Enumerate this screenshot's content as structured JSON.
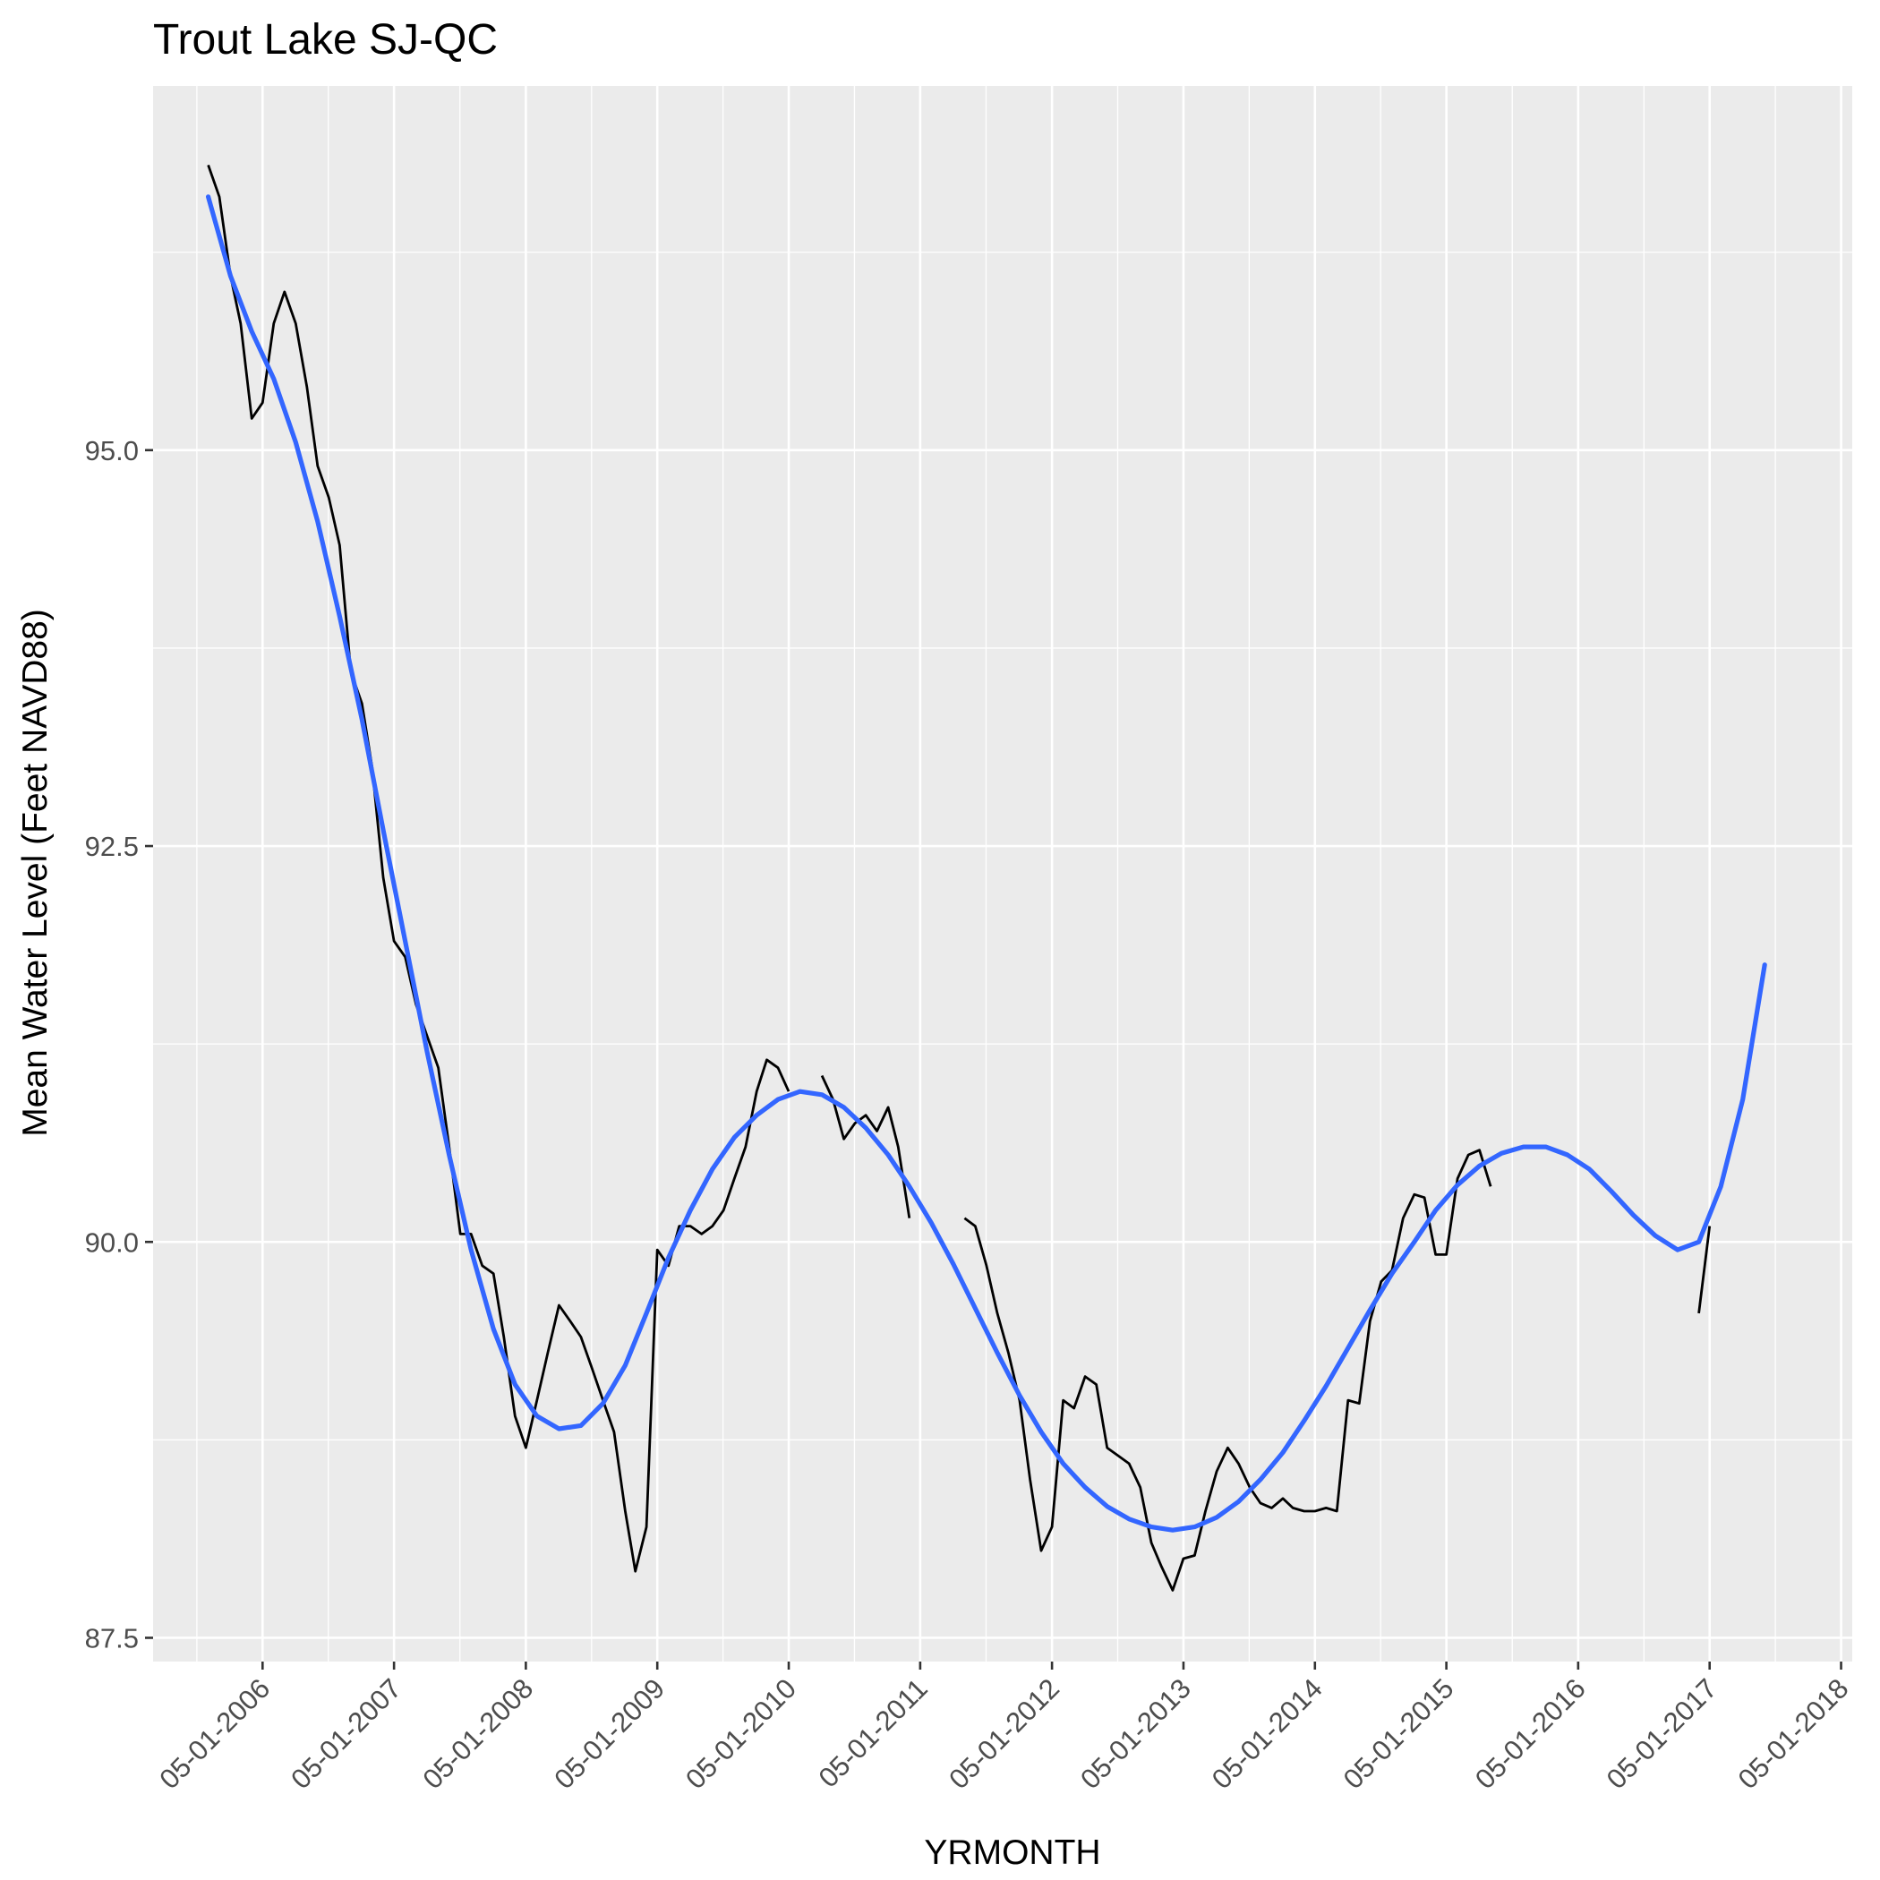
{
  "chart_data": {
    "type": "line",
    "title": "Trout Lake SJ-QC",
    "xlabel": "YRMONTH",
    "ylabel": "Mean Water Level (Feet NAVD88)",
    "ylim": [
      87.35,
      97.3
    ],
    "xlim": [
      "2005-07-01",
      "2018-06-01"
    ],
    "grid": true,
    "legend": "none",
    "x_tick_labels": [
      "05-01-2006",
      "05-01-2007",
      "05-01-2008",
      "05-01-2009",
      "05-01-2010",
      "05-01-2011",
      "05-01-2012",
      "05-01-2013",
      "05-01-2014",
      "05-01-2015",
      "05-01-2016",
      "05-01-2017",
      "05-01-2018"
    ],
    "x_tick_dates": [
      "2006-05-01",
      "2007-05-01",
      "2008-05-01",
      "2009-05-01",
      "2010-05-01",
      "2011-05-01",
      "2012-05-01",
      "2013-05-01",
      "2014-05-01",
      "2015-05-01",
      "2016-05-01",
      "2017-05-01",
      "2018-05-01"
    ],
    "y_ticks": [
      87.5,
      90.0,
      92.5,
      95.0
    ],
    "y_tick_labels": [
      "87.5",
      "90.0",
      "92.5",
      "95.0"
    ],
    "colors": {
      "panel_background": "#ebebeb",
      "grid_major": "#ffffff",
      "observed_line": "#000000",
      "smooth_line": "#3366ff",
      "tick_text": "#4d4d4d"
    },
    "series": [
      {
        "role": "observed",
        "segments": [
          [
            [
              "2005-12-01",
              96.8
            ],
            [
              "2006-01-01",
              96.6
            ],
            [
              "2006-02-01",
              96.1
            ],
            [
              "2006-03-01",
              95.8
            ],
            [
              "2006-04-01",
              95.2
            ],
            [
              "2006-05-01",
              95.3
            ],
            [
              "2006-06-01",
              95.8
            ],
            [
              "2006-07-01",
              96.0
            ],
            [
              "2006-08-01",
              95.8
            ],
            [
              "2006-09-01",
              95.4
            ],
            [
              "2006-10-01",
              94.9
            ],
            [
              "2006-11-01",
              94.7
            ],
            [
              "2006-12-01",
              94.4
            ],
            [
              "2007-01-01",
              93.6
            ],
            [
              "2007-02-01",
              93.4
            ],
            [
              "2007-03-01",
              93.0
            ],
            [
              "2007-04-01",
              92.3
            ],
            [
              "2007-05-01",
              91.9
            ],
            [
              "2007-06-01",
              91.8
            ],
            [
              "2007-07-01",
              91.5
            ],
            [
              "2007-08-01",
              91.3
            ],
            [
              "2007-09-01",
              91.1
            ],
            [
              "2007-10-01",
              90.6
            ],
            [
              "2007-11-01",
              90.05
            ],
            [
              "2007-12-01",
              90.05
            ],
            [
              "2008-01-01",
              89.85
            ],
            [
              "2008-02-01",
              89.8
            ],
            [
              "2008-03-01",
              89.4
            ],
            [
              "2008-04-01",
              88.9
            ],
            [
              "2008-05-01",
              88.7
            ],
            [
              "2008-06-01",
              89.0
            ],
            [
              "2008-07-01",
              89.3
            ],
            [
              "2008-08-01",
              89.6
            ],
            [
              "2008-09-01",
              89.5
            ],
            [
              "2008-10-01",
              89.4
            ],
            [
              "2008-11-01",
              89.2
            ],
            [
              "2008-12-01",
              89.0
            ],
            [
              "2009-01-01",
              88.8
            ],
            [
              "2009-02-01",
              88.3
            ],
            [
              "2009-03-01",
              87.92
            ],
            [
              "2009-04-01",
              88.2
            ],
            [
              "2009-05-01",
              89.95
            ],
            [
              "2009-06-01",
              89.85
            ],
            [
              "2009-07-01",
              90.1
            ],
            [
              "2009-08-01",
              90.1
            ],
            [
              "2009-09-01",
              90.05
            ],
            [
              "2009-10-01",
              90.1
            ],
            [
              "2009-11-01",
              90.2
            ],
            [
              "2009-12-01",
              90.4
            ],
            [
              "2010-01-01",
              90.6
            ],
            [
              "2010-02-01",
              90.95
            ],
            [
              "2010-03-01",
              91.15
            ],
            [
              "2010-04-01",
              91.1
            ],
            [
              "2010-05-01",
              90.95
            ]
          ],
          [
            [
              "2010-08-01",
              91.05
            ],
            [
              "2010-09-01",
              90.9
            ],
            [
              "2010-10-01",
              90.65
            ],
            [
              "2010-11-01",
              90.75
            ],
            [
              "2010-12-01",
              90.8
            ],
            [
              "2011-01-01",
              90.7
            ],
            [
              "2011-02-01",
              90.85
            ],
            [
              "2011-03-01",
              90.6
            ],
            [
              "2011-04-01",
              90.15
            ]
          ],
          [
            [
              "2011-09-01",
              90.15
            ],
            [
              "2011-10-01",
              90.1
            ],
            [
              "2011-11-01",
              89.85
            ],
            [
              "2011-12-01",
              89.55
            ],
            [
              "2012-01-01",
              89.3
            ],
            [
              "2012-02-01",
              89.0
            ],
            [
              "2012-03-01",
              88.5
            ],
            [
              "2012-04-01",
              88.05
            ],
            [
              "2012-05-01",
              88.2
            ],
            [
              "2012-06-01",
              89.0
            ],
            [
              "2012-07-01",
              88.95
            ],
            [
              "2012-08-01",
              89.15
            ],
            [
              "2012-09-01",
              89.1
            ],
            [
              "2012-10-01",
              88.7
            ],
            [
              "2012-11-01",
              88.65
            ],
            [
              "2012-12-01",
              88.6
            ],
            [
              "2013-01-01",
              88.45
            ],
            [
              "2013-02-01",
              88.1
            ],
            [
              "2013-03-01",
              87.95
            ],
            [
              "2013-04-01",
              87.8
            ],
            [
              "2013-05-01",
              88.0
            ],
            [
              "2013-06-01",
              88.02
            ],
            [
              "2013-07-01",
              88.3
            ],
            [
              "2013-08-01",
              88.55
            ],
            [
              "2013-09-01",
              88.7
            ],
            [
              "2013-10-01",
              88.6
            ],
            [
              "2013-11-01",
              88.45
            ],
            [
              "2013-12-01",
              88.35
            ],
            [
              "2014-01-01",
              88.32
            ],
            [
              "2014-02-01",
              88.38
            ],
            [
              "2014-03-01",
              88.32
            ],
            [
              "2014-04-01",
              88.3
            ],
            [
              "2014-05-01",
              88.3
            ],
            [
              "2014-06-01",
              88.32
            ],
            [
              "2014-07-01",
              88.3
            ],
            [
              "2014-08-01",
              89.0
            ],
            [
              "2014-09-01",
              88.98
            ],
            [
              "2014-10-01",
              89.5
            ],
            [
              "2014-11-01",
              89.75
            ],
            [
              "2014-12-01",
              89.82
            ],
            [
              "2015-01-01",
              90.15
            ],
            [
              "2015-02-01",
              90.3
            ],
            [
              "2015-03-01",
              90.28
            ],
            [
              "2015-04-01",
              89.92
            ],
            [
              "2015-05-01",
              89.92
            ],
            [
              "2015-06-01",
              90.4
            ],
            [
              "2015-07-01",
              90.55
            ],
            [
              "2015-08-01",
              90.58
            ],
            [
              "2015-09-01",
              90.35
            ]
          ],
          [
            [
              "2017-04-01",
              89.55
            ],
            [
              "2017-05-01",
              90.1
            ]
          ]
        ]
      },
      {
        "role": "smoothed trend",
        "values": [
          [
            "2005-12-01",
            96.6
          ],
          [
            "2006-02-01",
            96.1
          ],
          [
            "2006-04-01",
            95.75
          ],
          [
            "2006-06-01",
            95.45
          ],
          [
            "2006-08-01",
            95.05
          ],
          [
            "2006-10-01",
            94.55
          ],
          [
            "2006-12-01",
            93.95
          ],
          [
            "2007-02-01",
            93.3
          ],
          [
            "2007-04-01",
            92.6
          ],
          [
            "2007-06-01",
            91.9
          ],
          [
            "2007-08-01",
            91.2
          ],
          [
            "2007-10-01",
            90.55
          ],
          [
            "2007-12-01",
            89.95
          ],
          [
            "2008-02-01",
            89.45
          ],
          [
            "2008-04-01",
            89.1
          ],
          [
            "2008-06-01",
            88.9
          ],
          [
            "2008-08-01",
            88.82
          ],
          [
            "2008-10-01",
            88.84
          ],
          [
            "2008-12-01",
            88.98
          ],
          [
            "2009-02-01",
            89.22
          ],
          [
            "2009-04-01",
            89.55
          ],
          [
            "2009-06-01",
            89.9
          ],
          [
            "2009-08-01",
            90.2
          ],
          [
            "2009-10-01",
            90.46
          ],
          [
            "2009-12-01",
            90.66
          ],
          [
            "2010-02-01",
            90.8
          ],
          [
            "2010-04-01",
            90.9
          ],
          [
            "2010-06-01",
            90.95
          ],
          [
            "2010-08-01",
            90.93
          ],
          [
            "2010-10-01",
            90.85
          ],
          [
            "2010-12-01",
            90.72
          ],
          [
            "2011-02-01",
            90.55
          ],
          [
            "2011-04-01",
            90.35
          ],
          [
            "2011-06-01",
            90.12
          ],
          [
            "2011-08-01",
            89.86
          ],
          [
            "2011-10-01",
            89.58
          ],
          [
            "2011-12-01",
            89.3
          ],
          [
            "2012-02-01",
            89.03
          ],
          [
            "2012-04-01",
            88.8
          ],
          [
            "2012-06-01",
            88.6
          ],
          [
            "2012-08-01",
            88.45
          ],
          [
            "2012-10-01",
            88.33
          ],
          [
            "2012-12-01",
            88.25
          ],
          [
            "2013-02-01",
            88.2
          ],
          [
            "2013-04-01",
            88.18
          ],
          [
            "2013-06-01",
            88.2
          ],
          [
            "2013-08-01",
            88.26
          ],
          [
            "2013-10-01",
            88.36
          ],
          [
            "2013-12-01",
            88.5
          ],
          [
            "2014-02-01",
            88.67
          ],
          [
            "2014-04-01",
            88.87
          ],
          [
            "2014-06-01",
            89.09
          ],
          [
            "2014-08-01",
            89.33
          ],
          [
            "2014-10-01",
            89.57
          ],
          [
            "2014-12-01",
            89.8
          ],
          [
            "2015-02-01",
            90.0
          ],
          [
            "2015-04-01",
            90.2
          ],
          [
            "2015-06-01",
            90.36
          ],
          [
            "2015-08-01",
            90.48
          ],
          [
            "2015-10-01",
            90.56
          ],
          [
            "2015-12-01",
            90.6
          ],
          [
            "2016-02-01",
            90.6
          ],
          [
            "2016-04-01",
            90.55
          ],
          [
            "2016-06-01",
            90.46
          ],
          [
            "2016-08-01",
            90.32
          ],
          [
            "2016-10-01",
            90.17
          ],
          [
            "2016-12-01",
            90.04
          ],
          [
            "2017-02-01",
            89.95
          ],
          [
            "2017-04-01",
            90.0
          ],
          [
            "2017-06-01",
            90.35
          ],
          [
            "2017-08-01",
            90.9
          ],
          [
            "2017-10-01",
            91.75
          ]
        ]
      }
    ]
  }
}
